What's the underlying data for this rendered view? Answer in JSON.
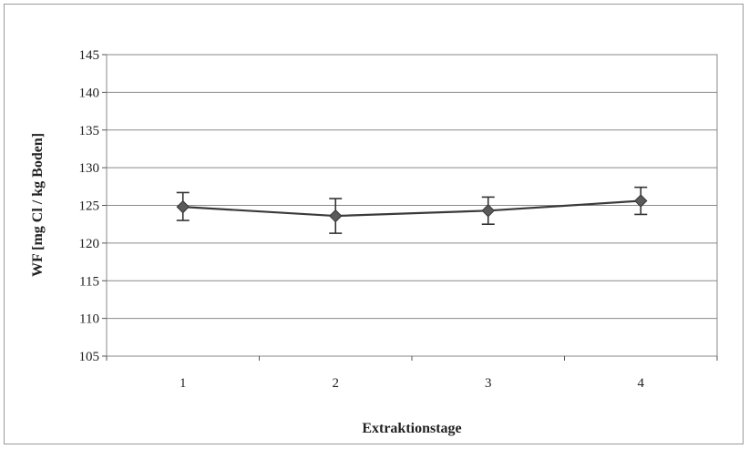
{
  "chart_data": {
    "type": "line",
    "title": "",
    "xlabel": "Extraktionstage",
    "ylabel": "WF [mg Cl / kg Boden]",
    "categories": [
      "1",
      "2",
      "3",
      "4"
    ],
    "series": [
      {
        "values": [
          124.8,
          123.6,
          124.3,
          125.6
        ],
        "error_low": [
          123.0,
          121.3,
          122.5,
          123.8
        ],
        "error_high": [
          126.7,
          125.9,
          126.1,
          127.4
        ],
        "marker": "diamond",
        "color": "#3a3a3a",
        "marker_color": "#5a5a5a"
      }
    ],
    "ylim": [
      105,
      145
    ],
    "yticks": [
      105,
      110,
      115,
      120,
      125,
      130,
      135,
      140,
      145
    ],
    "grid": true,
    "legend": "none"
  }
}
